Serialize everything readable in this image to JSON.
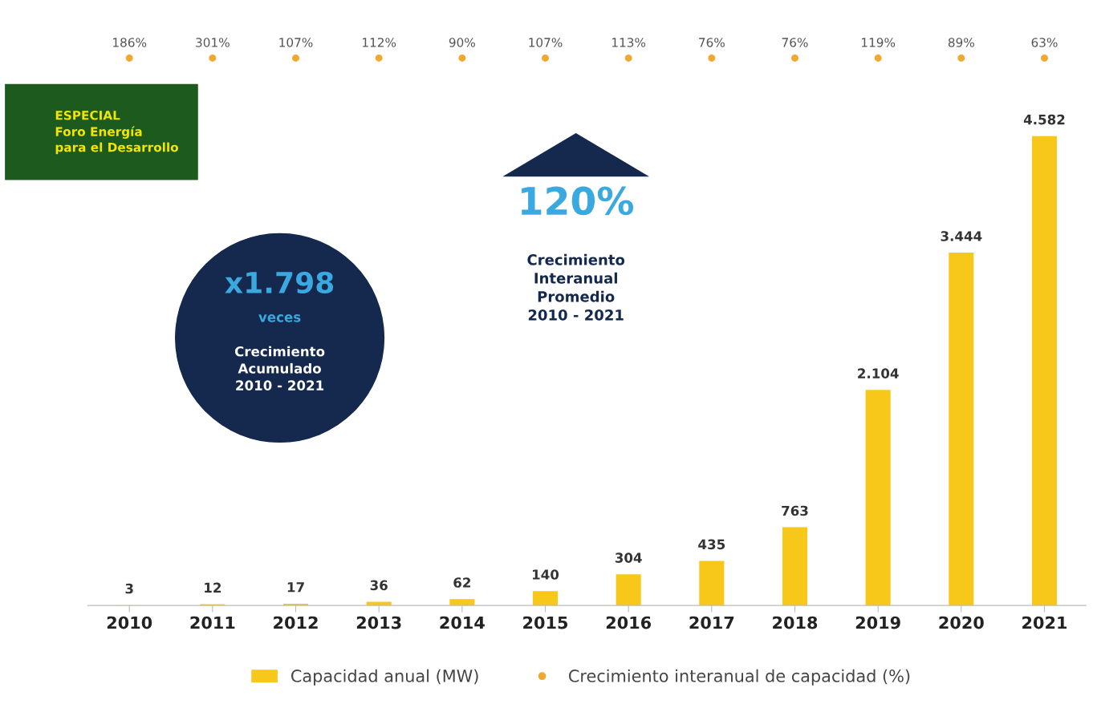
{
  "chart_data": [
    {
      "type": "other",
      "categories": [
        null,
        null,
        null,
        null,
        null,
        null,
        null,
        null,
        null,
        null,
        null,
        null
      ],
      "series": [
        {
          "name": "Crecimiento interanual de capacidad (%)",
          "color": "#f0a830",
          "values": [
            186,
            301,
            107,
            112,
            90,
            107,
            113,
            76,
            76,
            119,
            89,
            63
          ],
          "value_labels": [
            "186%",
            "301%",
            "107%",
            "112%",
            "90%",
            "107%",
            "113%",
            "76%",
            "76%",
            "119%",
            "89%",
            "63%"
          ]
        }
      ]
    },
    {
      "type": "bar",
      "categories": [
        "2010",
        "2011",
        "2012",
        "2013",
        "2014",
        "2015",
        "2016",
        "2017",
        "2018",
        "2019",
        "2020",
        "2021"
      ],
      "series": [
        {
          "name": "Capacidad anual (MW)",
          "color": "#f7c819",
          "values": [
            3,
            12,
            17,
            36,
            62,
            140,
            304,
            435,
            763,
            2104,
            3444,
            4582
          ],
          "value_labels": [
            "3",
            "12",
            "17",
            "36",
            "62",
            "140",
            "304",
            "435",
            "763",
            "2.104",
            "3.444",
            "4.582"
          ]
        }
      ],
      "legend": "bottom",
      "annotations": [
        "ESPECIAL\nForo Energía\npara el Desarrollo",
        "x1.798",
        "veces",
        "Crecimiento\nAcumulado\n2010 - 2021",
        "120%",
        "Crecimiento\nInteranual\nPromedio\n2010 - 2021"
      ]
    }
  ]
}
